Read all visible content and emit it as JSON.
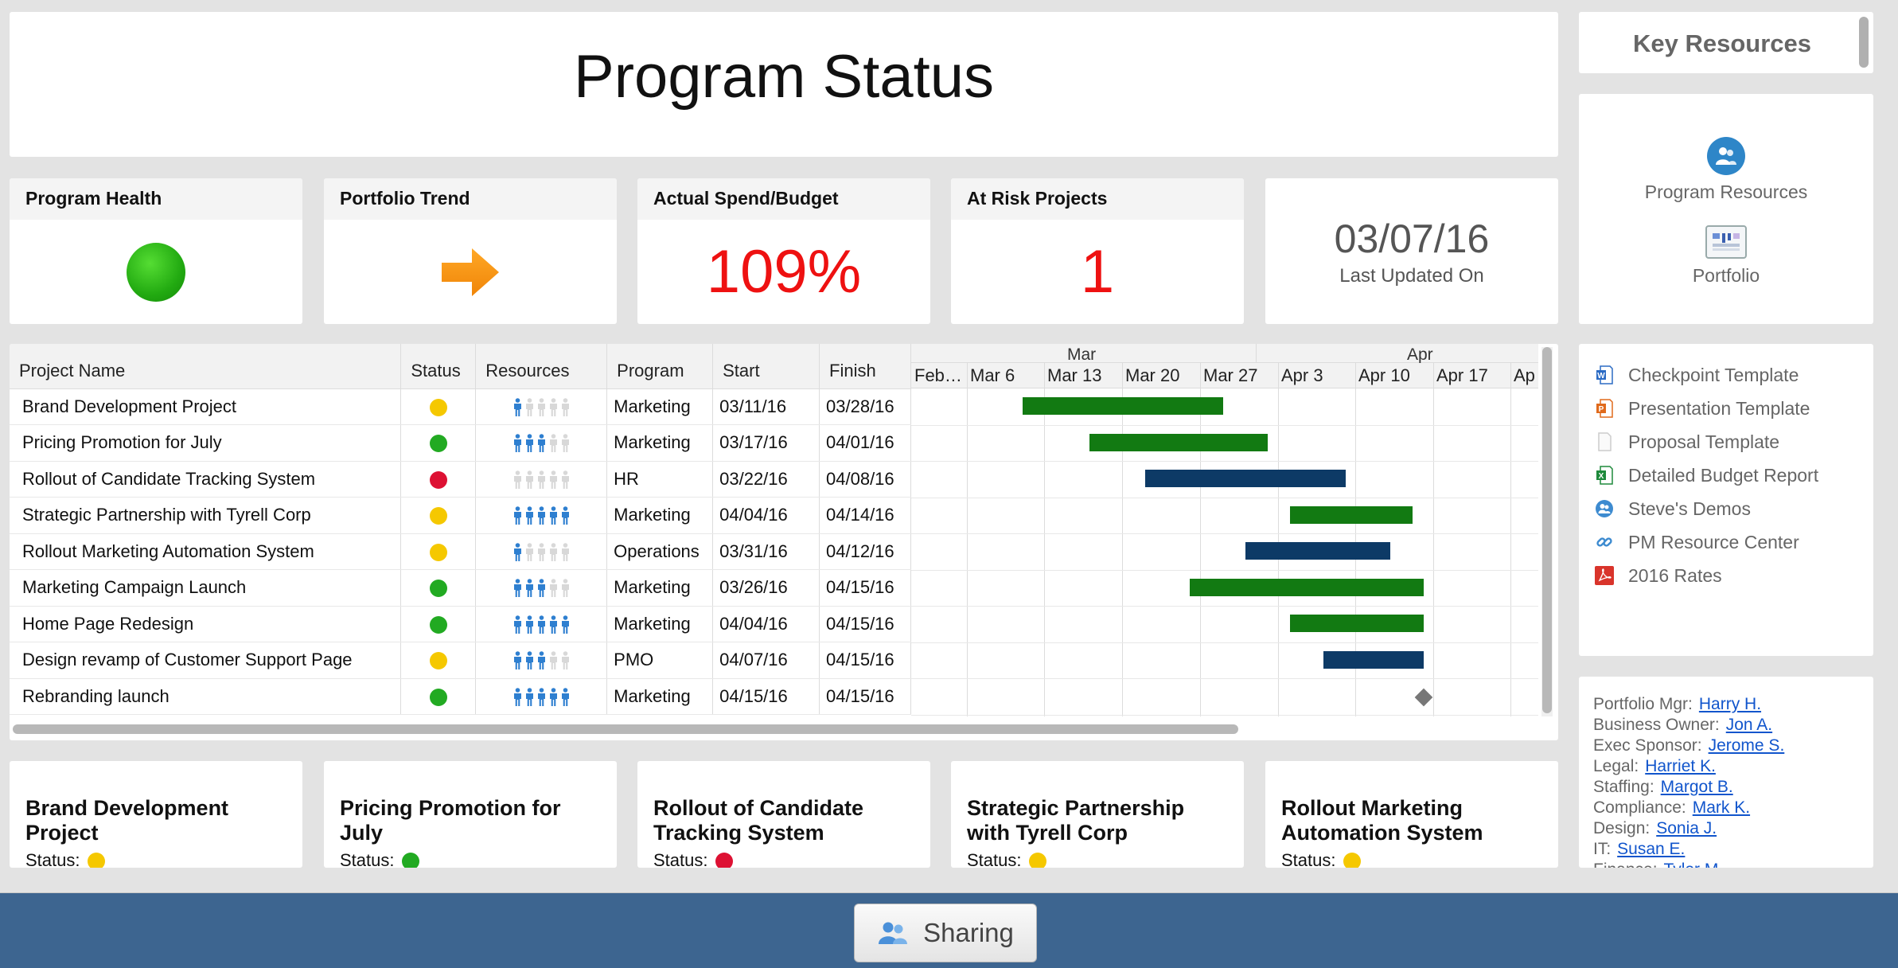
{
  "page": {
    "title": "Program Status"
  },
  "kpis": {
    "health": {
      "title": "Program Health",
      "color": "#22aa11"
    },
    "trend": {
      "title": "Portfolio Trend",
      "icon": "arrow-right-icon",
      "color": "#f7941d"
    },
    "spend": {
      "title": "Actual Spend/Budget",
      "value": "109%"
    },
    "risk": {
      "title": "At Risk Projects",
      "value": "1"
    },
    "updated": {
      "date": "03/07/16",
      "label": "Last Updated On"
    }
  },
  "status_colors": {
    "yellow": "#f5c800",
    "green": "#22aa22",
    "red": "#dd1133"
  },
  "bar_colors": {
    "green": "#127a12",
    "navy": "#0d3a66"
  },
  "table": {
    "columns": [
      "Project Name",
      "Status",
      "Resources",
      "Program",
      "Start",
      "Finish"
    ],
    "rows": [
      {
        "name": "Brand Development Project",
        "status": "yellow",
        "resources": 1,
        "program": "Marketing",
        "start": "03/11/16",
        "finish": "03/28/16",
        "bar_color": "green"
      },
      {
        "name": "Pricing Promotion for July",
        "status": "green",
        "resources": 3,
        "program": "Marketing",
        "start": "03/17/16",
        "finish": "04/01/16",
        "bar_color": "green"
      },
      {
        "name": "Rollout of Candidate Tracking System",
        "status": "red",
        "resources": 0,
        "program": "HR",
        "start": "03/22/16",
        "finish": "04/08/16",
        "bar_color": "navy"
      },
      {
        "name": "Strategic Partnership with Tyrell Corp",
        "status": "yellow",
        "resources": 5,
        "program": "Marketing",
        "start": "04/04/16",
        "finish": "04/14/16",
        "bar_color": "green"
      },
      {
        "name": "Rollout Marketing Automation System",
        "status": "yellow",
        "resources": 1,
        "program": "Operations",
        "start": "03/31/16",
        "finish": "04/12/16",
        "bar_color": "navy"
      },
      {
        "name": "Marketing Campaign Launch",
        "status": "green",
        "resources": 3,
        "program": "Marketing",
        "start": "03/26/16",
        "finish": "04/15/16",
        "bar_color": "green"
      },
      {
        "name": "Home Page Redesign",
        "status": "green",
        "resources": 5,
        "program": "Marketing",
        "start": "04/04/16",
        "finish": "04/15/16",
        "bar_color": "green"
      },
      {
        "name": "Design revamp of Customer Support Page",
        "status": "yellow",
        "resources": 3,
        "program": "PMO",
        "start": "04/07/16",
        "finish": "04/15/16",
        "bar_color": "navy"
      },
      {
        "name": "Rebranding launch",
        "status": "green",
        "resources": 5,
        "program": "Marketing",
        "start": "04/15/16",
        "finish": "04/15/16",
        "milestone": true
      }
    ]
  },
  "gantt": {
    "months": [
      "Mar",
      "Apr"
    ],
    "weeks": [
      "Feb…",
      "Mar 6",
      "Mar 13",
      "Mar 20",
      "Mar 27",
      "Apr 3",
      "Apr 10",
      "Apr 17",
      "Ap"
    ]
  },
  "project_cards": [
    {
      "title": "Brand Development Project",
      "status_label": "Status:",
      "status": "yellow"
    },
    {
      "title": "Pricing Promotion for July",
      "status_label": "Status:",
      "status": "green"
    },
    {
      "title": "Rollout of Candidate Tracking System",
      "status_label": "Status:",
      "status": "red"
    },
    {
      "title": "Strategic Partnership with Tyrell Corp",
      "status_label": "Status:",
      "status": "yellow"
    },
    {
      "title": "Rollout Marketing Automation System",
      "status_label": "Status:",
      "status": "yellow"
    }
  ],
  "key_resources": {
    "title": "Key Resources",
    "links": [
      {
        "label": "Program Resources",
        "icon": "people-icon"
      },
      {
        "label": "Portfolio",
        "icon": "dashboard-icon"
      }
    ],
    "files": [
      {
        "label": "Checkpoint Template",
        "icon": "word-doc-icon"
      },
      {
        "label": "Presentation Template",
        "icon": "powerpoint-icon"
      },
      {
        "label": "Proposal Template",
        "icon": "blank-doc-icon"
      },
      {
        "label": "Detailed Budget Report",
        "icon": "excel-icon"
      },
      {
        "label": "Steve's Demos",
        "icon": "people-icon"
      },
      {
        "label": "PM Resource Center",
        "icon": "link-icon"
      },
      {
        "label": "2016 Rates",
        "icon": "pdf-icon"
      }
    ],
    "contacts": [
      {
        "role": "Portfolio Mgr:",
        "name": "Harry H."
      },
      {
        "role": "Business Owner:",
        "name": "Jon A."
      },
      {
        "role": "Exec Sponsor:",
        "name": "Jerome S."
      },
      {
        "role": "Legal:",
        "name": "Harriet K."
      },
      {
        "role": "Staffing:",
        "name": "Margot B."
      },
      {
        "role": "Compliance:",
        "name": "Mark K."
      },
      {
        "role": "Design:",
        "name": "Sonia J."
      },
      {
        "role": "IT:",
        "name": "Susan E."
      },
      {
        "role": "Finance:",
        "name": "Tyler M."
      }
    ]
  },
  "footer": {
    "sharing_label": "Sharing",
    "sharing_icon": "people-icon"
  }
}
